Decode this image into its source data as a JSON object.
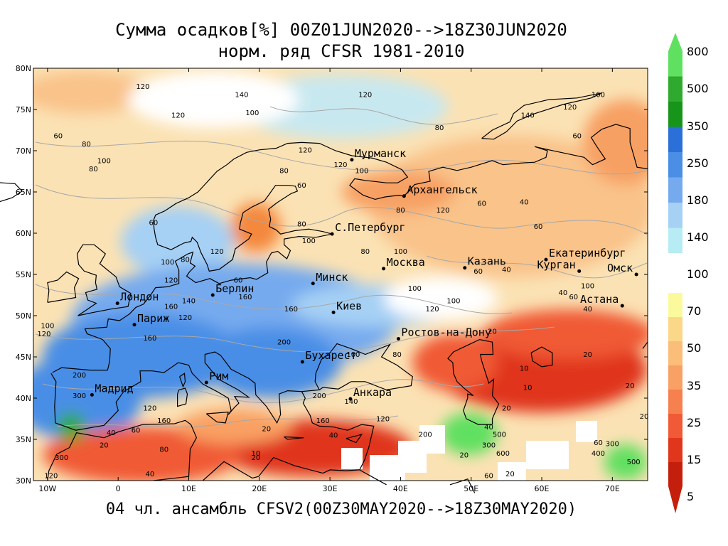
{
  "title_line1": "Сумма осадков[%] 00Z01JUN2020-->18Z30JUN2020",
  "title_line2": "норм. ряд CFSR 1981-2010",
  "footer": "04 чл. ансамбль CFSV2(00Z30MAY2020-->18Z30MAY2020)",
  "map": {
    "lon_range": [
      -12,
      75
    ],
    "lat_range": [
      30,
      80
    ],
    "lat_ticks": [
      {
        "lat": 80,
        "label": "80N"
      },
      {
        "lat": 75,
        "label": "75N"
      },
      {
        "lat": 70,
        "label": "70N"
      },
      {
        "lat": 65,
        "label": "65N"
      },
      {
        "lat": 60,
        "label": "60N"
      },
      {
        "lat": 55,
        "label": "55N"
      },
      {
        "lat": 50,
        "label": "50N"
      },
      {
        "lat": 45,
        "label": "45N"
      },
      {
        "lat": 40,
        "label": "40N"
      },
      {
        "lat": 35,
        "label": "35N"
      },
      {
        "lat": 30,
        "label": "30N"
      }
    ],
    "lon_ticks": [
      {
        "lon": -10,
        "label": "10W"
      },
      {
        "lon": 0,
        "label": "0"
      },
      {
        "lon": 10,
        "label": "10E"
      },
      {
        "lon": 20,
        "label": "20E"
      },
      {
        "lon": 30,
        "label": "30E"
      },
      {
        "lon": 40,
        "label": "40E"
      },
      {
        "lon": 50,
        "label": "50E"
      },
      {
        "lon": 60,
        "label": "60E"
      },
      {
        "lon": 70,
        "label": "70E"
      }
    ],
    "cities": [
      {
        "name": "Мурманск",
        "lon": 33.1,
        "lat": 68.9
      },
      {
        "name": "Архангельск",
        "lon": 40.5,
        "lat": 64.5
      },
      {
        "name": "С.Петербург",
        "lon": 30.3,
        "lat": 59.9
      },
      {
        "name": "Москва",
        "lon": 37.6,
        "lat": 55.7
      },
      {
        "name": "Казань",
        "lon": 49.1,
        "lat": 55.8
      },
      {
        "name": "Екатеринбург",
        "lon": 60.6,
        "lat": 56.8
      },
      {
        "name": "Курган",
        "lon": 65.3,
        "lat": 55.4
      },
      {
        "name": "Омск",
        "lon": 73.4,
        "lat": 55.0
      },
      {
        "name": "Астана",
        "lon": 71.4,
        "lat": 51.2
      },
      {
        "name": "Минск",
        "lon": 27.6,
        "lat": 53.9
      },
      {
        "name": "Киев",
        "lon": 30.5,
        "lat": 50.4
      },
      {
        "name": "Берлин",
        "lon": 13.4,
        "lat": 52.5
      },
      {
        "name": "Лондон",
        "lon": -0.1,
        "lat": 51.5
      },
      {
        "name": "Париж",
        "lon": 2.3,
        "lat": 48.9
      },
      {
        "name": "Ростов-на-Дону",
        "lon": 39.7,
        "lat": 47.2
      },
      {
        "name": "Бухарест",
        "lon": 26.1,
        "lat": 44.4
      },
      {
        "name": "Рим",
        "lon": 12.5,
        "lat": 41.9
      },
      {
        "name": "Мадрид",
        "lon": -3.7,
        "lat": 40.4
      },
      {
        "name": "Анкара",
        "lon": 32.9,
        "lat": 39.9
      }
    ],
    "contour_labels": [
      {
        "v": "120",
        "lon": 3.5,
        "lat": 77.5
      },
      {
        "v": "140",
        "lon": 17.5,
        "lat": 76.5
      },
      {
        "v": "100",
        "lon": 19,
        "lat": 74.3
      },
      {
        "v": "120",
        "lon": 35,
        "lat": 76.5
      },
      {
        "v": "120",
        "lon": 64,
        "lat": 75.0
      },
      {
        "v": "100",
        "lon": 68,
        "lat": 76.5
      },
      {
        "v": "80",
        "lon": 45.5,
        "lat": 72.5
      },
      {
        "v": "120",
        "lon": 46,
        "lat": 62.5
      },
      {
        "v": "140",
        "lon": 58,
        "lat": 74.0
      },
      {
        "v": "60",
        "lon": 65,
        "lat": 71.5
      },
      {
        "v": "60",
        "lon": -8.5,
        "lat": 71.5
      },
      {
        "v": "80",
        "lon": -4.5,
        "lat": 70.5
      },
      {
        "v": "100",
        "lon": -2,
        "lat": 68.5
      },
      {
        "v": "80",
        "lon": -3.5,
        "lat": 67.5
      },
      {
        "v": "120",
        "lon": 8.5,
        "lat": 74.0
      },
      {
        "v": "120",
        "lon": 26.5,
        "lat": 69.8
      },
      {
        "v": "120",
        "lon": 31.5,
        "lat": 68.0
      },
      {
        "v": "100",
        "lon": 34.5,
        "lat": 67.3
      },
      {
        "v": "80",
        "lon": 23.5,
        "lat": 67.3
      },
      {
        "v": "60",
        "lon": 26,
        "lat": 65.5
      },
      {
        "v": "60",
        "lon": 51.5,
        "lat": 63.3
      },
      {
        "v": "40",
        "lon": 57.5,
        "lat": 63.5
      },
      {
        "v": "60",
        "lon": 59.5,
        "lat": 60.5
      },
      {
        "v": "80",
        "lon": 40,
        "lat": 62.5
      },
      {
        "v": "80",
        "lon": 26,
        "lat": 60.8
      },
      {
        "v": "100",
        "lon": 27,
        "lat": 58.8
      },
      {
        "v": "80",
        "lon": 35,
        "lat": 57.5
      },
      {
        "v": "100",
        "lon": 40,
        "lat": 57.5
      },
      {
        "v": "60",
        "lon": 51,
        "lat": 55.1
      },
      {
        "v": "40",
        "lon": 55,
        "lat": 55.3
      },
      {
        "v": "100",
        "lon": 42,
        "lat": 53.0
      },
      {
        "v": "100",
        "lon": 47.5,
        "lat": 51.5
      },
      {
        "v": "120",
        "lon": 44.5,
        "lat": 50.5
      },
      {
        "v": "40",
        "lon": 63,
        "lat": 52.5
      },
      {
        "v": "100",
        "lon": 66.5,
        "lat": 53.3
      },
      {
        "v": "60",
        "lon": 64.5,
        "lat": 52.0
      },
      {
        "v": "40",
        "lon": 66.5,
        "lat": 50.5
      },
      {
        "v": "60",
        "lon": 5,
        "lat": 61.0
      },
      {
        "v": "120",
        "lon": 14,
        "lat": 57.5
      },
      {
        "v": "80",
        "lon": 9.5,
        "lat": 56.5
      },
      {
        "v": "100",
        "lon": 7,
        "lat": 56.2
      },
      {
        "v": "120",
        "lon": 7.5,
        "lat": 54.0
      },
      {
        "v": "60",
        "lon": 17,
        "lat": 54.0
      },
      {
        "v": "160",
        "lon": 18,
        "lat": 52.0
      },
      {
        "v": "140",
        "lon": 10,
        "lat": 51.5
      },
      {
        "v": "160",
        "lon": 7.5,
        "lat": 50.8
      },
      {
        "v": "120",
        "lon": 9.5,
        "lat": 49.5
      },
      {
        "v": "100",
        "lon": -10,
        "lat": 48.5
      },
      {
        "v": "120",
        "lon": -10.5,
        "lat": 47.5
      },
      {
        "v": "160",
        "lon": 4.5,
        "lat": 47.0
      },
      {
        "v": "160",
        "lon": 24.5,
        "lat": 50.5
      },
      {
        "v": "200",
        "lon": 23.5,
        "lat": 46.5
      },
      {
        "v": "100",
        "lon": 33.3,
        "lat": 45.0
      },
      {
        "v": "80",
        "lon": 39.5,
        "lat": 45.0
      },
      {
        "v": "20",
        "lon": 53,
        "lat": 47.8
      },
      {
        "v": "20",
        "lon": 66.5,
        "lat": 45.0
      },
      {
        "v": "10",
        "lon": 57.5,
        "lat": 43.3
      },
      {
        "v": "10",
        "lon": 58,
        "lat": 41.0
      },
      {
        "v": "20",
        "lon": 55,
        "lat": 38.5
      },
      {
        "v": "200",
        "lon": -5.5,
        "lat": 42.5
      },
      {
        "v": "300",
        "lon": -5.5,
        "lat": 40.0
      },
      {
        "v": "120",
        "lon": 4.5,
        "lat": 38.5
      },
      {
        "v": "160",
        "lon": 6.5,
        "lat": 37.0
      },
      {
        "v": "60",
        "lon": 2.5,
        "lat": 35.8
      },
      {
        "v": "40",
        "lon": -1,
        "lat": 35.5
      },
      {
        "v": "20",
        "lon": -2,
        "lat": 34.0
      },
      {
        "v": "300",
        "lon": -8,
        "lat": 32.5
      },
      {
        "v": "80",
        "lon": 6.5,
        "lat": 33.5
      },
      {
        "v": "40",
        "lon": 4.5,
        "lat": 30.5
      },
      {
        "v": "20",
        "lon": 19.5,
        "lat": 32.5
      },
      {
        "v": "20",
        "lon": 21,
        "lat": 36.0
      },
      {
        "v": "160",
        "lon": 29,
        "lat": 37.0
      },
      {
        "v": "120",
        "lon": 37.5,
        "lat": 37.2
      },
      {
        "v": "40",
        "lon": 30.5,
        "lat": 35.2
      },
      {
        "v": "200",
        "lon": 28.5,
        "lat": 40.0
      },
      {
        "v": "140",
        "lon": 33,
        "lat": 39.3
      },
      {
        "v": "200",
        "lon": 43.5,
        "lat": 35.3
      },
      {
        "v": "300",
        "lon": 52.5,
        "lat": 34.0
      },
      {
        "v": "500",
        "lon": 54,
        "lat": 35.3
      },
      {
        "v": "40",
        "lon": 52.5,
        "lat": 36.2
      },
      {
        "v": "600",
        "lon": 54.5,
        "lat": 33.0
      },
      {
        "v": "20",
        "lon": 55.5,
        "lat": 30.5
      },
      {
        "v": "60",
        "lon": 52.5,
        "lat": 30.3
      },
      {
        "v": "20",
        "lon": 49,
        "lat": 32.8
      },
      {
        "v": "400",
        "lon": 68,
        "lat": 33.0
      },
      {
        "v": "300",
        "lon": 70,
        "lat": 34.2
      },
      {
        "v": "500",
        "lon": 73,
        "lat": 32.0
      },
      {
        "v": "60",
        "lon": 68,
        "lat": 34.3
      },
      {
        "v": "20",
        "lon": 72.5,
        "lat": 41.2
      },
      {
        "v": "20",
        "lon": 74.5,
        "lat": 37.5
      },
      {
        "v": "120",
        "lon": -9.5,
        "lat": 30.3
      },
      {
        "v": "10",
        "lon": 19.5,
        "lat": 33.0
      }
    ],
    "colors": {
      "land": "#000000",
      "contour": "#a8a8a8",
      "grid": "#000000",
      "mask": "#ffffff"
    }
  },
  "colorbar": {
    "labels": [
      "800",
      "500",
      "350",
      "250",
      "180",
      "140",
      "100",
      "70",
      "50",
      "35",
      "25",
      "15",
      "5"
    ],
    "wet_colors": [
      "#60e060",
      "#2faa2f",
      "#17951b",
      "#2b6fd8",
      "#4a8ee6",
      "#76aaee",
      "#a6d0f4",
      "#b8ecf4"
    ],
    "dry_colors": [
      "#fafa9c",
      "#fbd888",
      "#fbbe78",
      "#f9a064",
      "#f6804e",
      "#f05a36",
      "#e0361c",
      "#c41f0c"
    ]
  }
}
